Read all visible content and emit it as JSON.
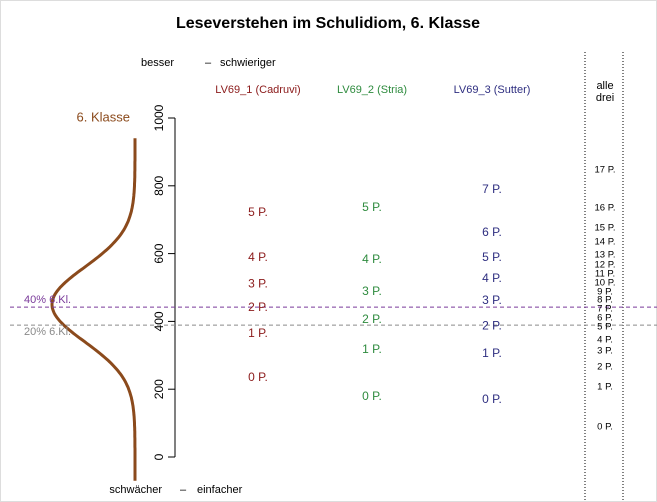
{
  "chart_data": {
    "type": "wright-map",
    "title": "Leseverstehen im Schulidiom, 6. Klasse",
    "top_label": [
      "besser",
      "–",
      "schwieriger"
    ],
    "bottom_label": [
      "schwächer",
      "–",
      "einfacher"
    ],
    "ylim": [
      0,
      1000
    ],
    "yticks": [
      0,
      200,
      400,
      600,
      800,
      1000
    ],
    "distribution": {
      "name": "6. Klasse",
      "color": "#8b4a1c",
      "mean": 450,
      "sd": 110,
      "range": [
        -70,
        940
      ]
    },
    "reference_lines": [
      {
        "name": "40% 6.Kl.",
        "value": 442,
        "color": "#7a3a9a"
      },
      {
        "name": "20% 6.Kl.",
        "value": 389,
        "color": "#8a8a8a"
      }
    ],
    "columns": [
      {
        "name": "LV69_1 (Cadruvi)",
        "color": "#8b1a1a",
        "labels": [
          "0 P.",
          "1 P.",
          "2 P.",
          "3 P.",
          "4 P.",
          "5 P."
        ],
        "values": [
          233,
          363,
          440,
          510,
          587,
          720
        ]
      },
      {
        "name": "LV69_2 (Stria)",
        "color": "#2e8b3e",
        "labels": [
          "0 P.",
          "1 P.",
          "2 P.",
          "3 P.",
          "4 P.",
          "5 P."
        ],
        "values": [
          177,
          316,
          404,
          487,
          581,
          735
        ]
      },
      {
        "name": "LV69_3 (Sutter)",
        "color": "#2e2e80",
        "labels": [
          "0 P.",
          "1 P.",
          "2 P.",
          "3 P.",
          "4 P.",
          "5 P.",
          "6 P.",
          "7 P."
        ],
        "values": [
          168,
          304,
          386,
          460,
          525,
          587,
          661,
          788
        ]
      },
      {
        "name_lines": [
          "alle",
          "drei"
        ],
        "color": "#000000",
        "labels": [
          "0 P.",
          "1 P.",
          "2 P.",
          "3 P.",
          "4 P.",
          "5 P.",
          "6 P.",
          "7 P.",
          "8 P.",
          "9 P.",
          "10 P.",
          "11 P.",
          "12 P.",
          "13 P.",
          "14 P.",
          "15 P.",
          "16 P.",
          "17 P."
        ],
        "values": [
          88,
          206,
          265,
          313,
          345,
          383,
          410,
          437,
          463,
          487,
          513,
          540,
          566,
          596,
          634,
          676,
          735,
          847
        ]
      }
    ]
  }
}
